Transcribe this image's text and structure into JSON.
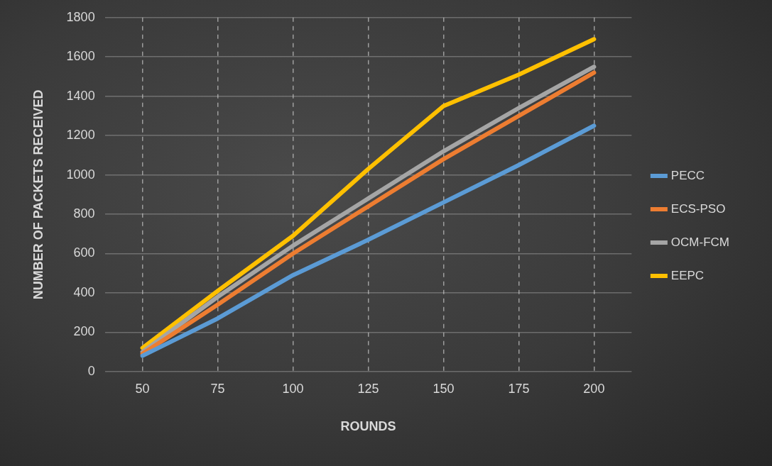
{
  "chart_data": {
    "type": "line",
    "xlabel": "ROUNDS",
    "ylabel": "NUMBER OF PACKETS RECEIVED",
    "categories": [
      "50",
      "75",
      "100",
      "125",
      "150",
      "175",
      "200"
    ],
    "series": [
      {
        "name": "PECC",
        "color": "#5b9bd5",
        "values": [
          80,
          270,
          490,
          670,
          860,
          1050,
          1250
        ]
      },
      {
        "name": "ECS-PSO",
        "color": "#ed7d31",
        "values": [
          90,
          340,
          600,
          840,
          1080,
          1300,
          1520
        ]
      },
      {
        "name": "OCM-FCM",
        "color": "#a5a5a5",
        "values": [
          100,
          380,
          640,
          880,
          1120,
          1340,
          1550
        ]
      },
      {
        "name": "EEPC",
        "color": "#ffc000",
        "values": [
          120,
          410,
          690,
          1030,
          1350,
          1510,
          1690
        ]
      }
    ],
    "ylim": [
      0,
      1800
    ],
    "yticks": [
      0,
      200,
      400,
      600,
      800,
      1000,
      1200,
      1400,
      1600,
      1800
    ],
    "grid": true,
    "legend": "right",
    "marker": "none",
    "line_style": "solid"
  }
}
